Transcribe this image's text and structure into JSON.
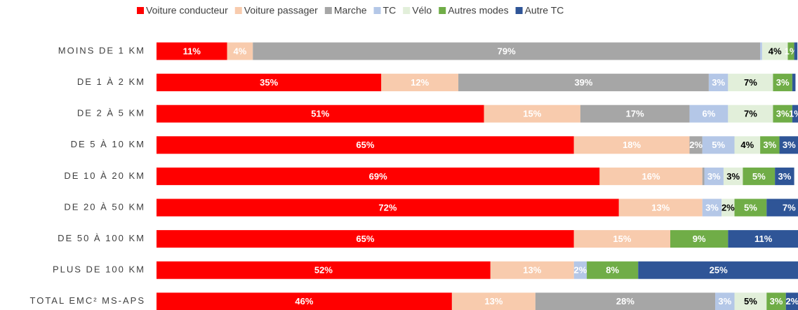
{
  "chart_data": {
    "type": "stacked-bar-horizontal",
    "categories": [
      "MOINS DE 1 KM",
      "DE 1 À 2 KM",
      "DE 2 À 5 KM",
      "DE 5 À 10 KM",
      "DE 10 À 20 KM",
      "DE 20 À 50 KM",
      "DE 50 À 100 KM",
      "PLUS DE 100 KM",
      "TOTAL EMC² MS-APS"
    ],
    "xlim": [
      0,
      100
    ],
    "legend": "top",
    "series": [
      {
        "name": "Voiture conducteur",
        "color": "#ff0000",
        "label_color": "#ffffff",
        "values": [
          11,
          35,
          51,
          65,
          69,
          72,
          65,
          52,
          46
        ],
        "value_labels": [
          "11%",
          "35%",
          "51%",
          "65%",
          "69%",
          "72%",
          "65%",
          "52%",
          "46%"
        ]
      },
      {
        "name": "Voiture passager",
        "color": "#f8cbad",
        "label_color": "#ffffff",
        "values": [
          4,
          12,
          15,
          18,
          16,
          13,
          15,
          13,
          13
        ],
        "value_labels": [
          "4%",
          "12%",
          "15%",
          "18%",
          "16%",
          "13%",
          "15%",
          "13%",
          "13%"
        ]
      },
      {
        "name": "Marche",
        "color": "#a6a6a6",
        "label_color": "#ffffff",
        "values": [
          79,
          39,
          17,
          2,
          0.3,
          null,
          null,
          null,
          28
        ],
        "value_labels": [
          "79%",
          "39%",
          "17%",
          "2%",
          null,
          null,
          null,
          null,
          "28%"
        ]
      },
      {
        "name": "TC",
        "color": "#b4c7e7",
        "label_color": "#ffffff",
        "values": [
          0.3,
          3,
          6,
          5,
          3,
          3,
          null,
          2,
          3
        ],
        "value_labels": [
          null,
          "3%",
          "6%",
          "5%",
          "3%",
          "3%",
          null,
          "2%",
          "3%"
        ]
      },
      {
        "name": "Vélo",
        "color": "#e2efda",
        "label_color": "#000000",
        "values": [
          4,
          7,
          7,
          4,
          3,
          2,
          null,
          null,
          5
        ],
        "value_labels": [
          "4%",
          "7%",
          "7%",
          "4%",
          "3%",
          "2%",
          null,
          null,
          "5%"
        ]
      },
      {
        "name": "Autres modes",
        "color": "#70ad47",
        "label_color": "#ffffff",
        "values": [
          1,
          3,
          3,
          3,
          5,
          5,
          9,
          8,
          3
        ],
        "value_labels": [
          "1%",
          "3%",
          "3%",
          "3%",
          "5%",
          "5%",
          "9%",
          "8%",
          "3%"
        ]
      },
      {
        "name": "Autre TC",
        "color": "#2f5597",
        "label_color": "#ffffff",
        "values": [
          0.5,
          0.5,
          1,
          3,
          3,
          7,
          11,
          25,
          2
        ],
        "value_labels": [
          null,
          null,
          "1%",
          "3%",
          "3%",
          "7%",
          "11%",
          "25%",
          "2%"
        ]
      }
    ]
  }
}
